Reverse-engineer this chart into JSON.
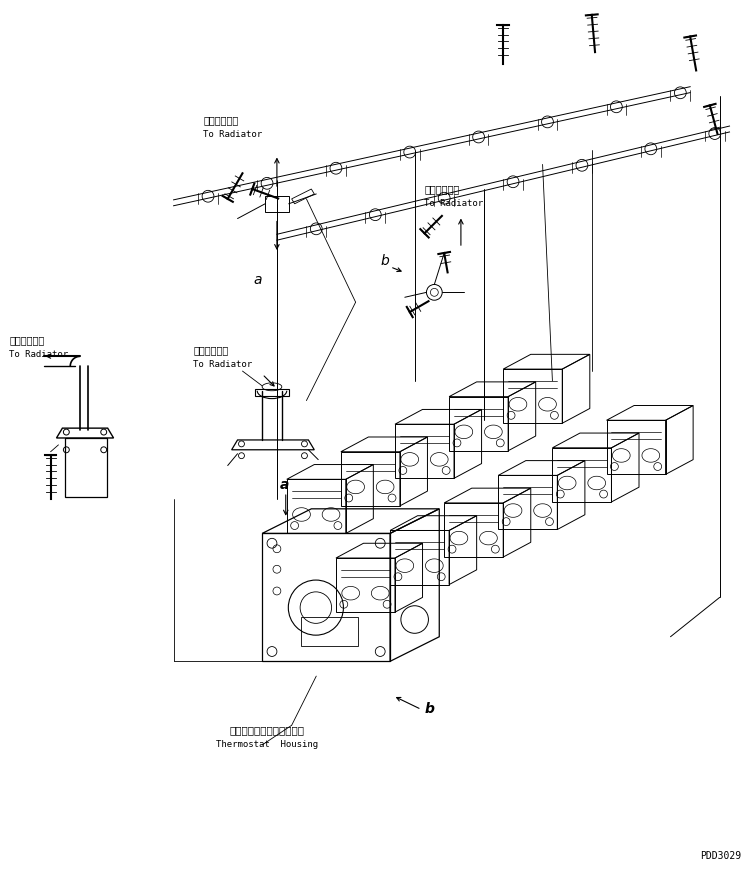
{
  "bg_color": "#ffffff",
  "line_color": "#000000",
  "fig_width": 7.49,
  "fig_height": 8.73,
  "dpi": 100,
  "watermark": "PDD3029",
  "label_a1_jp": "ラジエータへ",
  "label_a1_en": "To Radiator",
  "label_b1_jp": "ラジエータへ",
  "label_b1_en": "To Radiator",
  "label_a2_jp": "ラジエータへ",
  "label_a2_en": "To Radiator",
  "label_a3_jp": "ラジエータへ",
  "label_a3_en": "To Radiator",
  "thermo_jp": "サーモスタットハウジング",
  "thermo_en": "Thermostat  Housing"
}
